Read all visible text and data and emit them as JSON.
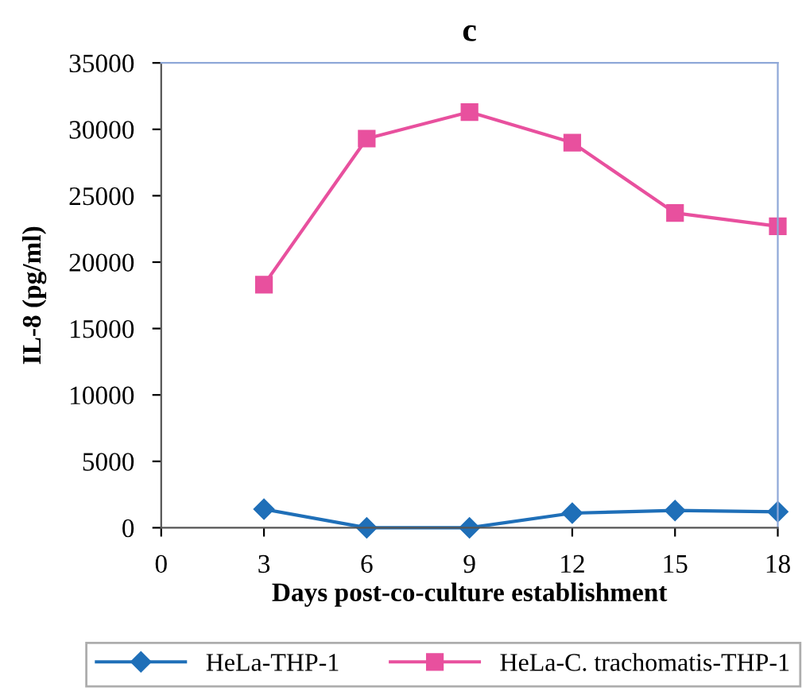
{
  "chart_data": {
    "type": "line",
    "title": "c",
    "xlabel": "Days post-co-culture establishment",
    "ylabel": "IL-8 (pg/ml)",
    "x": [
      3,
      6,
      9,
      12,
      15,
      18
    ],
    "series": [
      {
        "name": "HeLa-THP-1",
        "color": "#1f6fb8",
        "marker": "diamond",
        "values": [
          1400,
          0,
          0,
          1100,
          1300,
          1200
        ]
      },
      {
        "name": "HeLa-C. trachomatis-THP-1",
        "color": "#e8509e",
        "marker": "square",
        "values": [
          18300,
          29300,
          31300,
          29000,
          23700,
          22700
        ]
      }
    ],
    "xlim": [
      0,
      18
    ],
    "xticks": [
      0,
      3,
      6,
      9,
      12,
      15,
      18
    ],
    "ylim": [
      0,
      35000
    ],
    "yticks": [
      0,
      5000,
      10000,
      15000,
      20000,
      25000,
      30000,
      35000
    ],
    "grid": false,
    "legend": "bottom"
  }
}
